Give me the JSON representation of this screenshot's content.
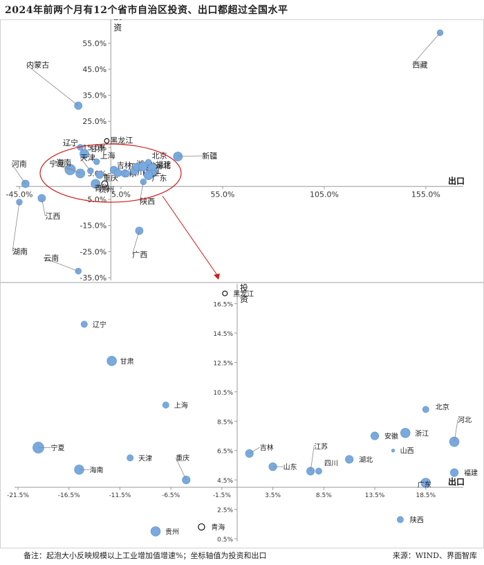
{
  "title": "2024年前两个月有12个省市自治区投资、出口都超过全国水平",
  "note": "备注：起泡大小反映规模以上工业增加值增速%；坐标轴值为投资和出口",
  "source": "来源：WIND、界面智库",
  "colors": {
    "bubble": "#7aa9dd",
    "bubble_stroke": "#5b8fc9",
    "axis": "#9a9a9a",
    "grid": "#cccccc",
    "highlight": "#d11a1a"
  },
  "chart_data": [
    {
      "type": "scatter",
      "title": "",
      "xlabel": "出口",
      "ylabel": "投资",
      "xlim": [
        -45,
        170
      ],
      "ylim": [
        -35,
        62
      ],
      "xticks": [
        -45,
        5,
        55,
        105,
        155
      ],
      "yticks": [
        -35,
        -25,
        -15,
        -5,
        5,
        15,
        25,
        35,
        45,
        55
      ],
      "xtick_labels": [
        "-45.0%",
        "5.0%",
        "55.0%",
        "105.0%",
        "155.0%"
      ],
      "ytick_labels": [
        "-35.0%",
        "-25.0%",
        "-15.0%",
        "-5.0%",
        "5.0%",
        "15.0%",
        "25.0%",
        "35.0%",
        "45.0%",
        "55.0%"
      ],
      "points": [
        {
          "name": "西藏",
          "x": 162,
          "y": 59,
          "size": 4
        },
        {
          "name": "内蒙古",
          "x": -16,
          "y": 31,
          "size": 5
        },
        {
          "name": "新疆",
          "x": 33,
          "y": 11.5,
          "size": 6
        },
        {
          "name": "河南",
          "x": -42,
          "y": 1,
          "size": 5
        },
        {
          "name": "江西",
          "x": -34,
          "y": -4.5,
          "size": 5
        },
        {
          "name": "湖南",
          "x": -45,
          "y": -6,
          "size": 4
        },
        {
          "name": "广西",
          "x": 14,
          "y": -17,
          "size": 5
        },
        {
          "name": "云南",
          "x": -16,
          "y": -32.5,
          "size": 4
        },
        {
          "name": "辽宁",
          "x": -15,
          "y": 15,
          "size": 4
        },
        {
          "name": "甘肃",
          "x": -13,
          "y": 12.5,
          "size": 6
        },
        {
          "name": "上海",
          "x": -7,
          "y": 9.5,
          "size": 4
        },
        {
          "name": "宁夏",
          "x": -20,
          "y": 6.5,
          "size": 7
        },
        {
          "name": "天津",
          "x": -10,
          "y": 6,
          "size": 4
        },
        {
          "name": "海南",
          "x": -15,
          "y": 5,
          "size": 6
        },
        {
          "name": "重庆",
          "x": -5.5,
          "y": 4.5,
          "size": 5
        },
        {
          "name": "贵州",
          "x": -7.5,
          "y": 1,
          "size": 6
        },
        {
          "name": "青海",
          "x": -3,
          "y": 1,
          "size": 4,
          "hollow": true
        },
        {
          "name": "黑龙江",
          "x": -2,
          "y": 17.5,
          "size": 3,
          "hollow": true
        },
        {
          "name": "吉林",
          "x": 1.5,
          "y": 6.3,
          "size": 5
        },
        {
          "name": "山东",
          "x": 3.5,
          "y": 5.2,
          "size": 5
        },
        {
          "name": "江苏",
          "x": 7,
          "y": 5,
          "size": 5
        },
        {
          "name": "四川",
          "x": 7.8,
          "y": 5,
          "size": 4
        },
        {
          "name": "湖北",
          "x": 11.5,
          "y": 6,
          "size": 5
        },
        {
          "name": "安徽",
          "x": 13,
          "y": 7.5,
          "size": 5
        },
        {
          "name": "山西",
          "x": 14.5,
          "y": 6.5,
          "size": 2
        },
        {
          "name": "浙江",
          "x": 16,
          "y": 7.7,
          "size": 6
        },
        {
          "name": "北京",
          "x": 18.5,
          "y": 9.3,
          "size": 4
        },
        {
          "name": "河北",
          "x": 20.5,
          "y": 7,
          "size": 6
        },
        {
          "name": "福建",
          "x": 20.5,
          "y": 5,
          "size": 5
        },
        {
          "name": "广东",
          "x": 18.5,
          "y": 4.3,
          "size": 6
        },
        {
          "name": "陕西",
          "x": 16,
          "y": 1.8,
          "size": 4
        }
      ]
    },
    {
      "type": "scatter",
      "title": "",
      "xlabel": "出口",
      "ylabel": "投资",
      "xlim": [
        -21.5,
        21.5
      ],
      "ylim": [
        0.5,
        17
      ],
      "xticks": [
        -21.5,
        -16.5,
        -11.5,
        -6.5,
        -1.5,
        3.5,
        8.5,
        13.5,
        18.5
      ],
      "yticks": [
        0.5,
        2.5,
        4.5,
        6.5,
        8.5,
        10.5,
        12.5,
        14.5,
        16.5
      ],
      "xtick_labels": [
        "-21.5%",
        "-16.5%",
        "-11.5%",
        "-6.5%",
        "-1.5%",
        "3.5%",
        "8.5%",
        "13.5%",
        "18.5%"
      ],
      "ytick_labels": [
        "0.5%",
        "2.5%",
        "4.5%",
        "6.5%",
        "8.5%",
        "10.5%",
        "12.5%",
        "14.5%",
        "16.5%"
      ],
      "points": [
        {
          "name": "黑龙江",
          "x": -1.2,
          "y": 17.2,
          "size": 3,
          "hollow": true
        },
        {
          "name": "辽宁",
          "x": -15,
          "y": 15.1,
          "size": 4
        },
        {
          "name": "甘肃",
          "x": -12.3,
          "y": 12.6,
          "size": 6
        },
        {
          "name": "上海",
          "x": -7,
          "y": 9.6,
          "size": 4
        },
        {
          "name": "宁夏",
          "x": -19.5,
          "y": 6.7,
          "size": 7
        },
        {
          "name": "天津",
          "x": -10.5,
          "y": 6,
          "size": 4
        },
        {
          "name": "海南",
          "x": -15.5,
          "y": 5.2,
          "size": 6
        },
        {
          "name": "重庆",
          "x": -5,
          "y": 4.5,
          "size": 5
        },
        {
          "name": "吉林",
          "x": 1.2,
          "y": 6.3,
          "size": 5
        },
        {
          "name": "山东",
          "x": 3.5,
          "y": 5.4,
          "size": 5
        },
        {
          "name": "江苏",
          "x": 7.2,
          "y": 5.1,
          "size": 5
        },
        {
          "name": "四川",
          "x": 8,
          "y": 5.1,
          "size": 4
        },
        {
          "name": "湖北",
          "x": 11,
          "y": 5.9,
          "size": 5
        },
        {
          "name": "安徽",
          "x": 13.5,
          "y": 7.5,
          "size": 5
        },
        {
          "name": "山西",
          "x": 15.3,
          "y": 6.5,
          "size": 2
        },
        {
          "name": "浙江",
          "x": 16.5,
          "y": 7.7,
          "size": 6
        },
        {
          "name": "北京",
          "x": 18.5,
          "y": 9.3,
          "size": 4
        },
        {
          "name": "河北",
          "x": 21.3,
          "y": 7.1,
          "size": 6
        },
        {
          "name": "福建",
          "x": 21.3,
          "y": 5,
          "size": 5
        },
        {
          "name": "广东",
          "x": 18.5,
          "y": 4.3,
          "size": 6
        },
        {
          "name": "陕西",
          "x": 16,
          "y": 1.8,
          "size": 4
        },
        {
          "name": "贵州",
          "x": -8,
          "y": 1,
          "size": 6
        },
        {
          "name": "青海",
          "x": -3.5,
          "y": 1.3,
          "size": 4,
          "hollow": true
        }
      ]
    }
  ]
}
